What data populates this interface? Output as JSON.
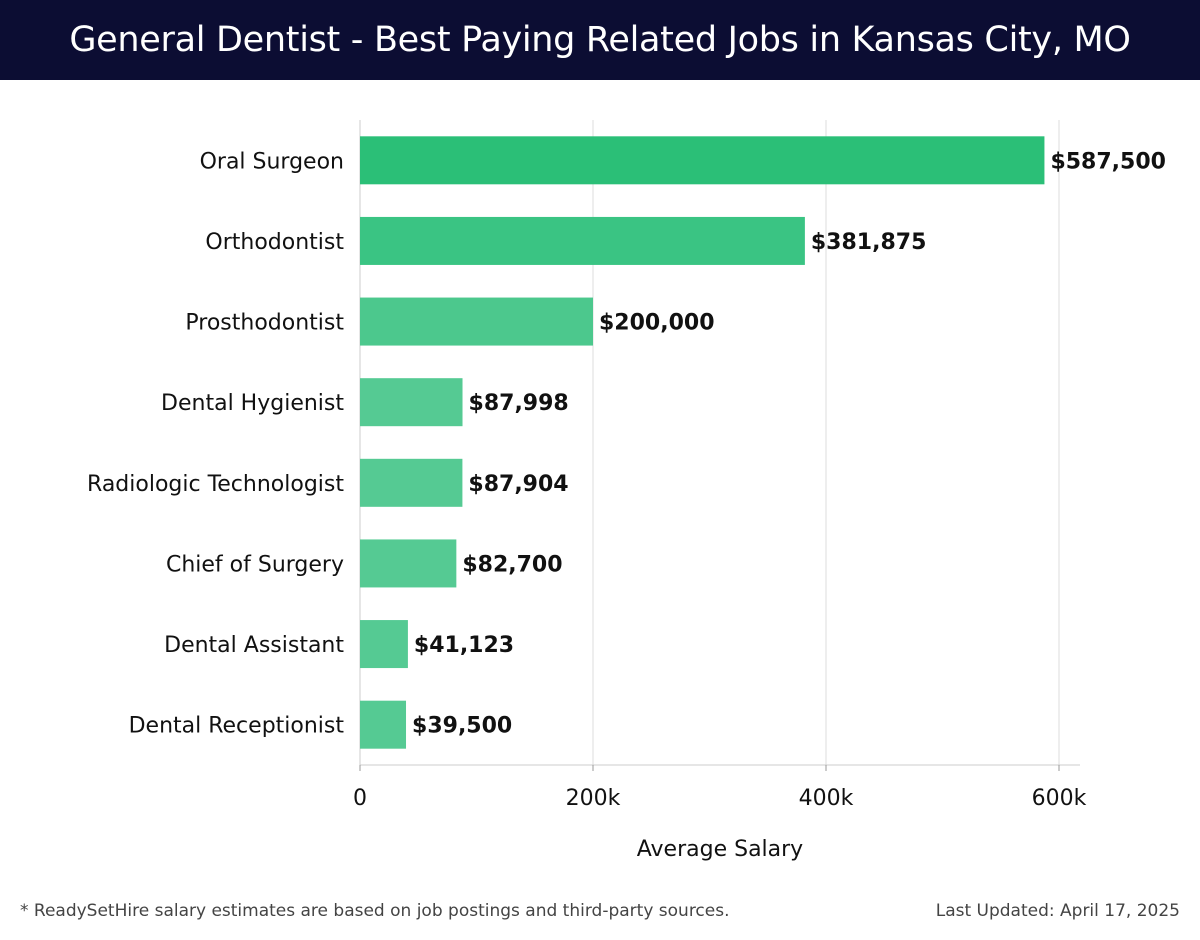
{
  "header": {
    "title": "General Dentist - Best Paying Related Jobs in Kansas City, MO"
  },
  "colors": {
    "header_bg": "#0c0d33",
    "bar_scale": [
      "#2bbf77",
      "#3ac483",
      "#4cc88d",
      "#55ca93",
      "#55ca93",
      "#55ca93",
      "#55ca93",
      "#55ca93"
    ],
    "grid": "#dddddd"
  },
  "chart_data": {
    "type": "bar",
    "orientation": "horizontal",
    "categories": [
      "Oral Surgeon",
      "Orthodontist",
      "Prosthodontist",
      "Dental Hygienist",
      "Radiologic Technologist",
      "Chief of Surgery",
      "Dental Assistant",
      "Dental Receptionist"
    ],
    "values": [
      587500,
      381875,
      200000,
      87998,
      87904,
      82700,
      41123,
      39500
    ],
    "value_labels": [
      "$587,500",
      "$381,875",
      "$200,000",
      "$87,998",
      "$87,904",
      "$82,700",
      "$41,123",
      "$39,500"
    ],
    "xlabel": "Average Salary",
    "ylabel": "",
    "xlim": [
      0,
      620000
    ],
    "xticks": [
      0,
      200000,
      400000,
      600000
    ],
    "xtick_labels": [
      "0",
      "200k",
      "400k",
      "600k"
    ],
    "grid": "vertical"
  },
  "footer": {
    "note": "* ReadySetHire salary estimates are based on job postings and third-party sources.",
    "updated": "Last Updated: April 17, 2025"
  }
}
